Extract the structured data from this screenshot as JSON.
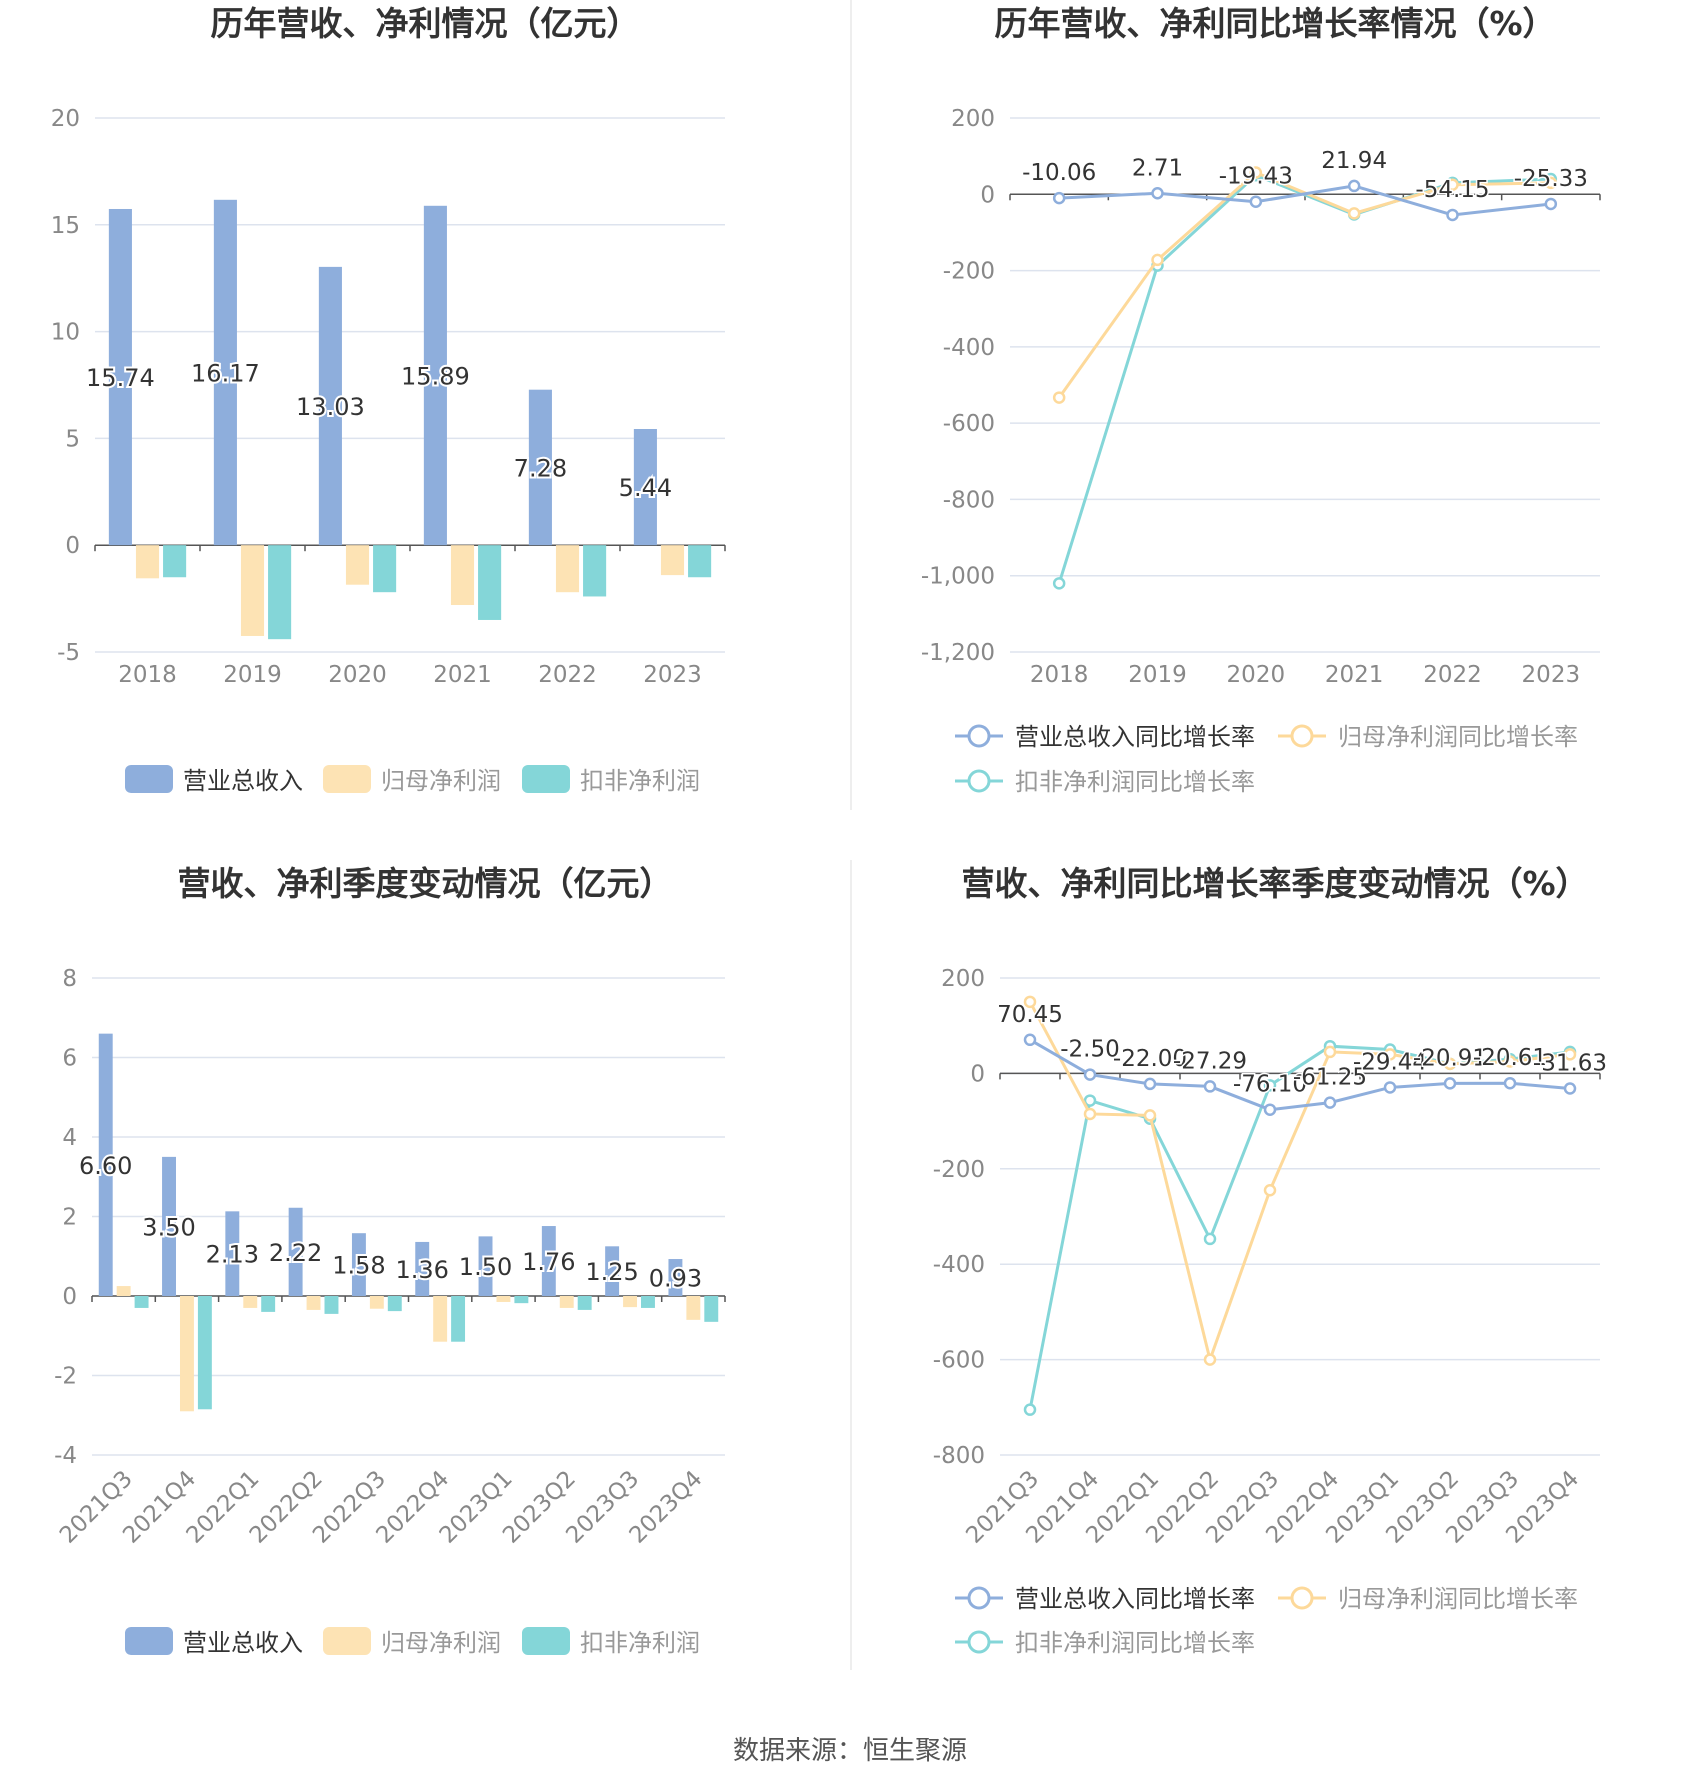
{
  "colors": {
    "revenue": "#8eaedc",
    "net_profit": "#fde3b4",
    "deducted_profit": "#84d6d8",
    "line_revenue": "#8eaedc",
    "line_net": "#fdd99a",
    "line_deducted": "#84d6d8",
    "grid": "#dde3ee",
    "axis_text": "#888888",
    "title": "#333333"
  },
  "source_label": "数据来源：恒生聚源",
  "chart_data": [
    {
      "type": "bar",
      "title": "历年营收、净利情况（亿元）",
      "categories": [
        "2018",
        "2019",
        "2020",
        "2021",
        "2022",
        "2023"
      ],
      "ylim": [
        -5,
        20
      ],
      "yticks": [
        "-5",
        "0",
        "5",
        "10",
        "15",
        "20"
      ],
      "series": [
        {
          "name": "营业总收入",
          "values": [
            15.74,
            16.17,
            13.03,
            15.89,
            7.28,
            5.44
          ],
          "labels": [
            "15.74",
            "16.17",
            "13.03",
            "15.89",
            "7.28",
            "5.44"
          ]
        },
        {
          "name": "归母净利润",
          "values": [
            -1.55,
            -4.25,
            -1.85,
            -2.8,
            -2.2,
            -1.4
          ]
        },
        {
          "name": "扣非净利润",
          "values": [
            -1.5,
            -4.4,
            -2.2,
            -3.5,
            -2.4,
            -1.5
          ]
        }
      ],
      "legend_position": "bottom",
      "grid": true
    },
    {
      "type": "line",
      "title": "历年营收、净利同比增长率情况（%）",
      "categories": [
        "2018",
        "2019",
        "2020",
        "2021",
        "2022",
        "2023"
      ],
      "ylim": [
        -1200,
        200
      ],
      "yticks": [
        "-1,200",
        "-1,000",
        "-800",
        "-600",
        "-400",
        "-200",
        "0",
        "200"
      ],
      "series": [
        {
          "name": "营业总收入同比增长率",
          "values": [
            -10.06,
            2.71,
            -19.43,
            21.94,
            -54.15,
            -25.33
          ],
          "labels": [
            "-10.06",
            "2.71",
            "-19.43",
            "21.94",
            "-54.15",
            "-25.33"
          ]
        },
        {
          "name": "归母净利润同比增长率",
          "values": [
            -533,
            -172,
            57,
            -50,
            25,
            30
          ]
        },
        {
          "name": "扣非净利润同比增长率",
          "values": [
            -1020,
            -187,
            50,
            -53,
            30,
            40
          ]
        }
      ],
      "legend_position": "bottom",
      "grid": true
    },
    {
      "type": "bar",
      "title": "营收、净利季度变动情况（亿元）",
      "categories": [
        "2021Q3",
        "2021Q4",
        "2022Q1",
        "2022Q2",
        "2022Q3",
        "2022Q4",
        "2023Q1",
        "2023Q2",
        "2023Q3",
        "2023Q4"
      ],
      "ylim": [
        -4,
        8
      ],
      "yticks": [
        "-4",
        "-2",
        "0",
        "2",
        "4",
        "6",
        "8"
      ],
      "series": [
        {
          "name": "营业总收入",
          "values": [
            6.6,
            3.5,
            2.13,
            2.22,
            1.58,
            1.36,
            1.5,
            1.76,
            1.25,
            0.93
          ],
          "labels": [
            "6.60",
            "3.50",
            "2.13",
            "2.22",
            "1.58",
            "1.36",
            "1.50",
            "1.76",
            "1.25",
            "0.93"
          ]
        },
        {
          "name": "归母净利润",
          "values": [
            0.25,
            -2.9,
            -0.3,
            -0.35,
            -0.32,
            -1.15,
            -0.15,
            -0.3,
            -0.28,
            -0.6
          ]
        },
        {
          "name": "扣非净利润",
          "values": [
            -0.3,
            -2.85,
            -0.4,
            -0.45,
            -0.38,
            -1.15,
            -0.18,
            -0.35,
            -0.3,
            -0.65
          ]
        }
      ],
      "legend_position": "bottom",
      "grid": true
    },
    {
      "type": "line",
      "title": "营收、净利同比增长率季度变动情况（%）",
      "categories": [
        "2021Q3",
        "2021Q4",
        "2022Q1",
        "2022Q2",
        "2022Q3",
        "2022Q4",
        "2023Q1",
        "2023Q2",
        "2023Q3",
        "2023Q4"
      ],
      "ylim": [
        -800,
        200
      ],
      "yticks": [
        "-800",
        "-600",
        "-400",
        "-200",
        "0",
        "200"
      ],
      "series": [
        {
          "name": "营业总收入同比增长率",
          "values": [
            70.45,
            -2.5,
            -22.0,
            -27.29,
            -76.1,
            -61.25,
            -29.44,
            -20.91,
            -20.61,
            -31.63
          ],
          "labels": [
            "70.45",
            "-2.50",
            "-22.00",
            "-27.29",
            "-76.10",
            "-61.25",
            "-29.44",
            "-20.91",
            "-20.61",
            "-31.63"
          ]
        },
        {
          "name": "归母净利润同比增长率",
          "values": [
            150,
            -85,
            -88,
            -600,
            -245,
            45,
            40,
            20,
            25,
            40
          ]
        },
        {
          "name": "扣非净利润同比增长率",
          "values": [
            -705,
            -57,
            -95,
            -347,
            -25,
            57,
            50,
            20,
            30,
            45
          ]
        }
      ],
      "legend_position": "bottom",
      "grid": true
    }
  ]
}
